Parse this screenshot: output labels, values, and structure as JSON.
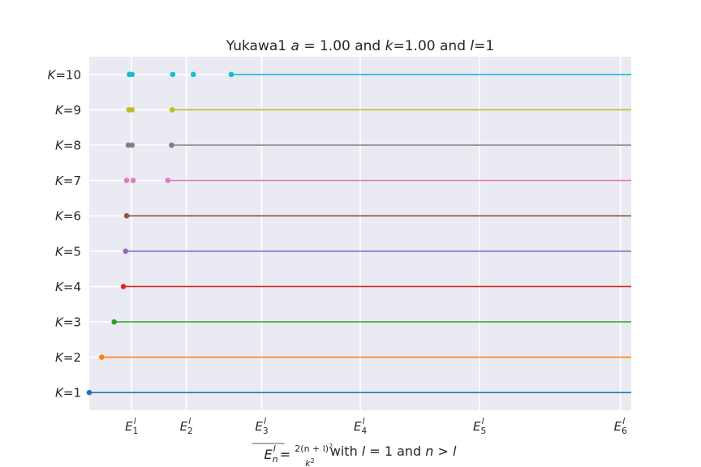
{
  "chart_data": {
    "type": "scatter",
    "title": "Yukawa1 a = 1.00 and k=1.00 and l=1",
    "title_parts": [
      "Yukawa1 ",
      "a",
      " = 1.00 and ",
      "k",
      "=1.00 and ",
      "l",
      "=1"
    ],
    "xlabel": "E_n^l = 2(n+l)^2 / k^2 with l = 1 and n > l",
    "xlabel_parts": {
      "lhs": "E",
      "sub": "n",
      "sup": "l",
      "eq": " = ",
      "num": "2(n + l)",
      "num_sup": "2",
      "den": "k",
      "den_sup": "2",
      "rest1": " with ",
      "l_var": "l",
      "rest2": " = 1 and ",
      "n_var": "n",
      "rest3": " > ",
      "l_var2": "l"
    },
    "xlim": [
      0,
      1.0
    ],
    "ylim": [
      0.5,
      10.5
    ],
    "grid": true,
    "x_ticks": [
      {
        "x": 0.078,
        "label": "E",
        "sub": "1",
        "sup": "l"
      },
      {
        "x": 0.179,
        "label": "E",
        "sub": "2",
        "sup": "l"
      },
      {
        "x": 0.318,
        "label": "E",
        "sub": "3",
        "sup": "l"
      },
      {
        "x": 0.5,
        "label": "E",
        "sub": "4",
        "sup": "l"
      },
      {
        "x": 0.72,
        "label": "E",
        "sub": "5",
        "sup": "l"
      },
      {
        "x": 0.98,
        "label": "E",
        "sub": "6",
        "sup": "l"
      }
    ],
    "y_ticks": [
      {
        "y": 1,
        "label": "K",
        "value": "=1"
      },
      {
        "y": 2,
        "label": "K",
        "value": "=2"
      },
      {
        "y": 3,
        "label": "K",
        "value": "=3"
      },
      {
        "y": 4,
        "label": "K",
        "value": "=4"
      },
      {
        "y": 5,
        "label": "K",
        "value": "=5"
      },
      {
        "y": 6,
        "label": "K",
        "value": "=6"
      },
      {
        "y": 7,
        "label": "K",
        "value": "=7"
      },
      {
        "y": 8,
        "label": "K",
        "value": "=8"
      },
      {
        "y": 9,
        "label": "K",
        "value": "=9"
      },
      {
        "y": 10,
        "label": "K",
        "value": "=10"
      }
    ],
    "series": [
      {
        "K": 1,
        "color": "#1f77b4",
        "points": [
          0.0
        ]
      },
      {
        "K": 2,
        "color": "#ff7f0e",
        "points": [
          0.023
        ]
      },
      {
        "K": 3,
        "color": "#2ca02c",
        "points": [
          0.046
        ]
      },
      {
        "K": 4,
        "color": "#d62728",
        "points": [
          0.063
        ]
      },
      {
        "K": 5,
        "color": "#9467bd",
        "points": [
          0.067
        ]
      },
      {
        "K": 6,
        "color": "#8c564b",
        "points": [
          0.069
        ]
      },
      {
        "K": 7,
        "color": "#e377c2",
        "points": [
          0.069,
          0.081,
          0.145
        ]
      },
      {
        "K": 8,
        "color": "#7f7f7f",
        "points": [
          0.072,
          0.079,
          0.152
        ]
      },
      {
        "K": 9,
        "color": "#bcbd22",
        "points": [
          0.073,
          0.079,
          0.153
        ]
      },
      {
        "K": 10,
        "color": "#17becf",
        "points": [
          0.074,
          0.079,
          0.154,
          0.192,
          0.262
        ]
      }
    ]
  }
}
